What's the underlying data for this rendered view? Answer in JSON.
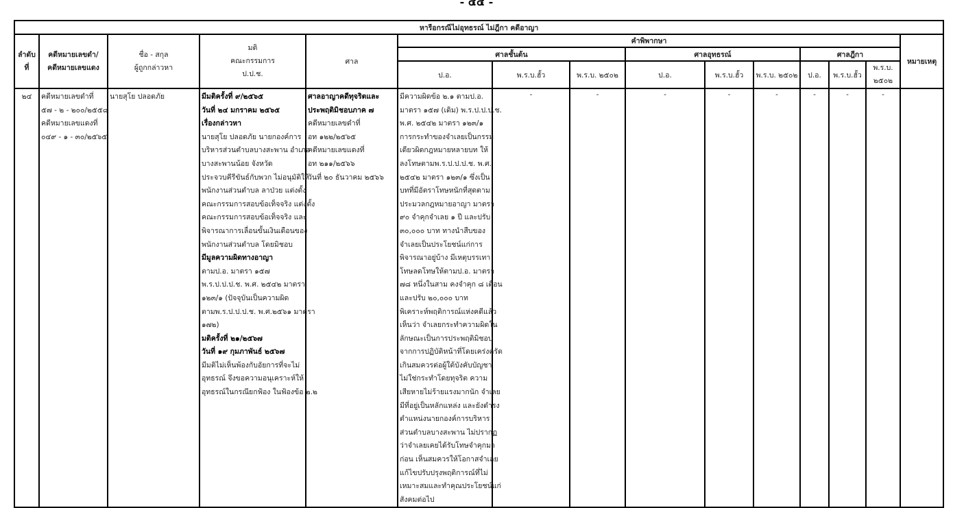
{
  "page_number": "- ๔๔ -",
  "table": {
    "title": "หารือกรณีไม่อุทธรณ์ ไม่ฎีกา คดีอาญา",
    "headers": {
      "seq": [
        "ลำดับ",
        "ที่"
      ],
      "case_no": [
        "คดีหมายเลขดำ/",
        "คดีหมายเลขแดง"
      ],
      "name": [
        "ชื่อ - สกุล",
        "ผู้ถูกกล่าวหา"
      ],
      "resolution": [
        "มติ",
        "คณะกรรมการ",
        "ป.ป.ช."
      ],
      "court": "ศาล",
      "judgment": "คำพิพากษา",
      "first_court": "ศาลชั้นต้น",
      "appeal_court": "ศาลอุทธรณ์",
      "supreme_court": "ศาลฎีกา",
      "remarks": "หมายเหตุ",
      "sub": {
        "first": [
          "ป.อ.",
          "พ.ร.บ.ฮั้ว",
          "พ.ร.บ. ๒๕๐๒"
        ],
        "appeal": [
          "ป.อ.",
          "พ.ร.บ.ฮั้ว",
          "พ.ร.บ. ๒๕๐๒"
        ],
        "supreme": [
          "ป.อ.",
          "พ.ร.บ.ฮั้ว",
          "พ.ร.บ.",
          "๒๕๐๒"
        ]
      }
    },
    "row": {
      "seq": "๒๔",
      "case_no": [
        {
          "t": "คดีหมายเลขดำที่"
        },
        {
          "t": "๕๗ - ๒ - ๒๐๐/๒๕๕๘"
        },
        {
          "t": "คดีหมายเลขแดงที่"
        },
        {
          "t": "๐๔๙ - ๑ - ๓๐/๒๕๖๕"
        }
      ],
      "name": [
        {
          "t": "นายสุโย  ปลอดภัย"
        }
      ],
      "resolution": [
        {
          "t": "มีมติครั้งที่ ๙/๒๕๖๕",
          "b": true
        },
        {
          "t": "วันที่ ๒๔ มกราคม ๒๕๖๕",
          "b": true
        },
        {
          "t": "เรื่องกล่าวหา",
          "b": true
        },
        {
          "t": "นายสุโย  ปลอดภัย นายกองค์การ"
        },
        {
          "t": "บริหารส่วนตำบลบางสะพาน อำเภอ"
        },
        {
          "t": "บางสะพานน้อย จังหวัด"
        },
        {
          "t": "ประจวบคีรีขันธ์กับพวก ไม่อนุมัติให้"
        },
        {
          "t": "พนักงานส่วนตำบล ลาป่วย แต่งตั้ง"
        },
        {
          "t": "คณะกรรมการสอบข้อเท็จจริง แต่งตั้ง"
        },
        {
          "t": "คณะกรรมการสอบข้อเท็จจริง และ"
        },
        {
          "t": "พิจารณาการเลื่อนขั้นเงินเดือนของ"
        },
        {
          "t": "พนักงานส่วนตำบล โดยมิชอบ"
        },
        {
          "t": "มีมูลความผิดทางอาญา",
          "b": true
        },
        {
          "t": "ตามป.อ. มาตรา ๑๕๗"
        },
        {
          "t": "พ.ร.ป.ป.ป.ช.  พ.ศ. ๒๕๔๒ มาตรา"
        },
        {
          "t": "๑๒๓/๑ (ปัจจุบันเป็นความผิด"
        },
        {
          "t": "ตามพ.ร.ป.ป.ป.ช.  พ.ศ.๒๕๖๑ มาตรา"
        },
        {
          "t": " ๑๗๒)"
        },
        {
          "t": "มติครั้งที่ ๒๑/๒๕๖๗",
          "b": true
        },
        {
          "t": "วันที่ ๑๙ กุมภาพันธ์ ๒๕๖๗",
          "b": true
        },
        {
          "t": "มีมติไม่เห็นพ้องกับอัยการที่จะไม่"
        },
        {
          "t": "อุทธรณ์ จึงขอความอนุเคราะห์ให้"
        },
        {
          "t": "อุทธรณ์ในกรณียกฟ้อง ในฟ้องข้อ ๒.๒"
        }
      ],
      "court": [
        {
          "t": "ศาลอาญาคดีทุจริตและ",
          "b": true
        },
        {
          "t": "ประพฤติมิชอบภาค ๗",
          "b": true
        },
        {
          "t": "คดีหมายเลขดำที่"
        },
        {
          "t": "อท ๑๒๒/๒๕๖๕"
        },
        {
          "t": "คดีหมายเลขแดงที่"
        },
        {
          "t": "อท ๒๑๑/๒๕๖๖"
        },
        {
          "t": "วันที่ ๒๐ ธันวาคม ๒๕๖๖"
        }
      ],
      "first_po": [
        {
          "t": "มีความผิดข้อ ๒.๑ ตามป.อ."
        },
        {
          "t": "มาตรา ๑๕๗ (เดิม) พ.ร.ป.ป.ป.ช."
        },
        {
          "t": " พ.ศ. ๒๕๔๒ มาตรา ๑๒๓/๑"
        },
        {
          "t": "การกระทำของจำเลยเป็นกรรม"
        },
        {
          "t": "เดียวผิดกฎหมายหลายบท ให้"
        },
        {
          "t": "ลงโทษตามพ.ร.ป.ป.ป.ช. พ.ศ."
        },
        {
          "t": "๒๕๔๒ มาตรา ๑๒๓/๑ ซึ่งเป็น"
        },
        {
          "t": "บทที่มีอัตราโทษหนักที่สุดตาม"
        },
        {
          "t": "ประมวลกฎหมายอาญา มาตรา"
        },
        {
          "t": "๙๐ จำคุกจำเลย ๑ ปี และปรับ"
        },
        {
          "t": "๓๐,๐๐๐ บาท ทางนำสืบของ"
        },
        {
          "t": "จำเลยเป็นประโยชน์แก่การ"
        },
        {
          "t": "พิจารณาอยู่บ้าง มีเหตุบรรเทา"
        },
        {
          "t": "โทษลดโทษให้ตามป.อ. มาตรา"
        },
        {
          "t": "๗๘ หนึ่งในสาม คงจำคุก ๘ เดือน"
        },
        {
          "t": " และปรับ ๒๐,๐๐๐ บาท"
        },
        {
          "t": "พิเคราะห์พฤติการณ์แห่งคดีแล้ว"
        },
        {
          "t": "เห็นว่า จำเลยกระทำความผิดใน"
        },
        {
          "t": "ลักษณะเป็นการประพฤติมิชอบ"
        },
        {
          "t": "จากการปฏิบัติหน้าที่โดยเคร่งครัด"
        },
        {
          "t": "เกินสมควรต่อผู้ใต้บังคับบัญชา"
        },
        {
          "t": "ไม่ใช่กระทำโดยทุจริต ความ"
        },
        {
          "t": "เสียหายไม่ร้ายแรงมากนัก จำเลย"
        },
        {
          "t": "มีที่อยู่เป็นหลักแหล่ง และยังดำรง"
        },
        {
          "t": "ตำแหน่งนายกองค์การบริหาร"
        },
        {
          "t": "ส่วนตำบลบางสะพาน ไม่ปรากฏ"
        },
        {
          "t": "ว่าจำเลยเคยได้รับโทษจำคุกมา"
        },
        {
          "t": "ก่อน เห็นสมควรให้โอกาสจำเลย"
        },
        {
          "t": "แก้ไขปรับปรุงพฤติการณ์ที่ไม่"
        },
        {
          "t": "เหมาะสมและทำคุณประโยชน์แก่"
        },
        {
          "t": "สังคมต่อไป"
        }
      ],
      "dashes": [
        "-",
        "-",
        "-",
        "-",
        "-",
        "-",
        "-",
        "-"
      ],
      "remarks": ""
    }
  }
}
